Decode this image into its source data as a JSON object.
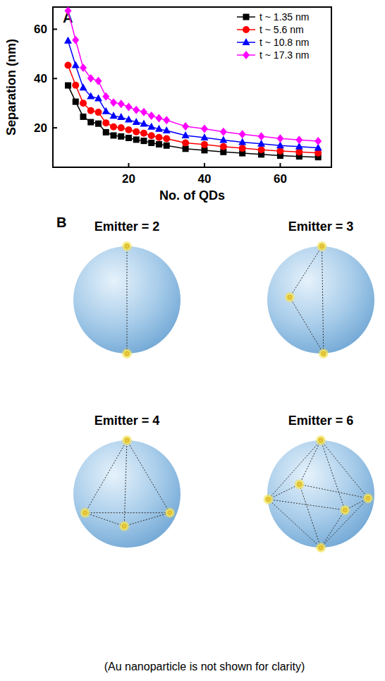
{
  "chart_data": {
    "type": "line",
    "panel_label": "A",
    "x_label": "No. of QDs",
    "y_label": "Separation (nm)",
    "x": [
      4,
      6,
      8,
      10,
      12,
      14,
      16,
      18,
      20,
      22,
      24,
      26,
      28,
      30,
      35,
      40,
      45,
      50,
      55,
      60,
      65,
      70
    ],
    "series": [
      {
        "name": "t ~ 1.35 nm",
        "color": "#000000",
        "marker": "square",
        "values": [
          37.2,
          30.6,
          24.5,
          22.3,
          21.7,
          18.2,
          16.9,
          16.5,
          15.9,
          15.2,
          14.7,
          13.9,
          13.3,
          12.8,
          11.5,
          10.9,
          10.2,
          9.7,
          9.2,
          8.7,
          8.4,
          8.1
        ]
      },
      {
        "name": "t ~ 5.6 nm",
        "color": "#ff0000",
        "marker": "circle",
        "values": [
          45.4,
          37.3,
          30.0,
          27.0,
          26.3,
          22.0,
          20.4,
          20.0,
          19.2,
          18.4,
          17.8,
          16.8,
          16.1,
          15.6,
          13.9,
          13.2,
          12.4,
          11.7,
          11.1,
          10.6,
          10.2,
          9.8
        ]
      },
      {
        "name": "t ~ 10.8 nm",
        "color": "#0000ff",
        "marker": "triangle",
        "values": [
          55.3,
          45.4,
          36.3,
          32.8,
          31.9,
          26.7,
          24.8,
          24.3,
          23.3,
          22.3,
          21.6,
          20.4,
          19.5,
          18.9,
          16.9,
          16.0,
          15.0,
          14.2,
          13.5,
          12.8,
          12.4,
          11.9
        ]
      },
      {
        "name": "t ~ 17.3 nm",
        "color": "#ff00ff",
        "marker": "diamond",
        "values": [
          67.5,
          55.6,
          44.4,
          40.1,
          39.0,
          32.7,
          30.3,
          29.7,
          28.5,
          27.3,
          26.4,
          24.9,
          23.9,
          23.1,
          20.6,
          19.6,
          18.4,
          17.4,
          16.5,
          15.7,
          15.1,
          14.6
        ]
      }
    ],
    "xlim": [
      0,
      73.5
    ],
    "xticks": [
      20,
      40,
      60
    ],
    "ylim": [
      4,
      69
    ],
    "yticks": [
      20,
      40,
      60
    ],
    "legend": "upper right",
    "grid": false
  },
  "diagram": {
    "label": "B",
    "panels": [
      {
        "title": "Emitter = 2",
        "emitters": 2
      },
      {
        "title": "Emitter = 3",
        "emitters": 3
      },
      {
        "title": "Emitter = 4",
        "emitters": 4
      },
      {
        "title": "Emitter = 6",
        "emitters": 6
      }
    ],
    "note": "(Au nanoparticle is not shown for clarity)"
  }
}
